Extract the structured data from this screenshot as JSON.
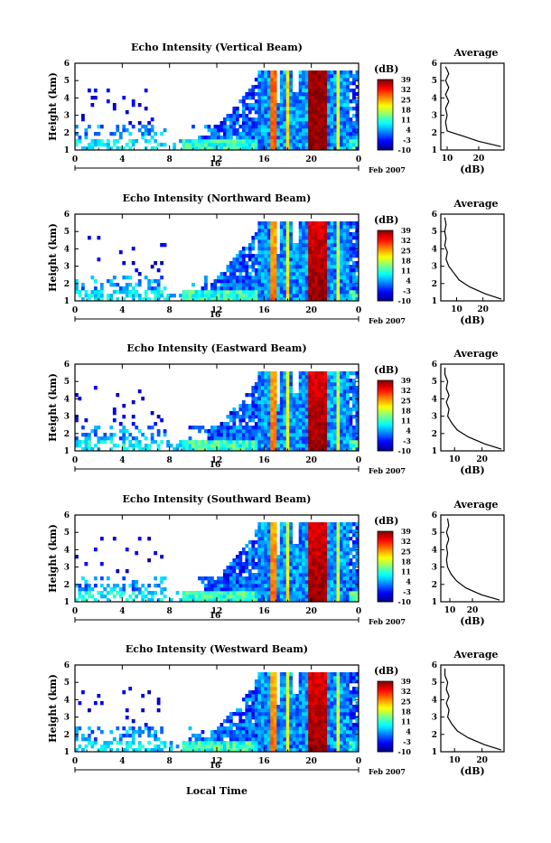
{
  "figure": {
    "xlabel": "Local Time",
    "date_label": "Feb 2007",
    "day_label": "16",
    "colorbar_label": "(dB)",
    "colorbar_ticks": [
      "39",
      "32",
      "25",
      "18",
      "11",
      "4",
      "-3",
      "-10"
    ],
    "avg_title": "Average",
    "avg_xlabel": "(dB)"
  },
  "chart_data": [
    {
      "type": "heatmap",
      "title": "Echo Intensity (Vertical Beam)",
      "ylabel": "Height (km)",
      "x_ticks": [
        "0",
        "4",
        "8",
        "12",
        "16",
        "20",
        "0"
      ],
      "y_ticks": [
        "1",
        "2",
        "3",
        "4",
        "5",
        "6"
      ],
      "xlim": [
        0,
        24
      ],
      "ylim": [
        1,
        6
      ],
      "zlim": [
        -10,
        39
      ],
      "avg": {
        "x_ticks": [
          "10",
          "20"
        ],
        "xlim": [
          8,
          28
        ],
        "profile": [
          [
            1.2,
            27
          ],
          [
            1.5,
            20
          ],
          [
            1.8,
            15
          ],
          [
            2.1,
            10
          ],
          [
            2.6,
            9.5
          ],
          [
            3.0,
            10
          ],
          [
            3.4,
            9.5
          ],
          [
            3.8,
            10.5
          ],
          [
            4.2,
            9.5
          ],
          [
            4.6,
            10.5
          ],
          [
            5.0,
            9.5
          ],
          [
            5.4,
            10.5
          ],
          [
            5.8,
            9.5
          ]
        ]
      }
    },
    {
      "type": "heatmap",
      "title": "Echo Intensity (Northward Beam)",
      "ylabel": "Height (km)",
      "x_ticks": [
        "0",
        "4",
        "8",
        "12",
        "16",
        "20",
        "0"
      ],
      "y_ticks": [
        "1",
        "2",
        "3",
        "4",
        "5",
        "6"
      ],
      "xlim": [
        0,
        24
      ],
      "ylim": [
        1,
        6
      ],
      "zlim": [
        -10,
        39
      ],
      "avg": {
        "x_ticks": [
          "10",
          "20"
        ],
        "xlim": [
          4,
          28
        ],
        "profile": [
          [
            1.1,
            27
          ],
          [
            1.4,
            21
          ],
          [
            1.8,
            15
          ],
          [
            2.2,
            11
          ],
          [
            2.6,
            9
          ],
          [
            3.0,
            7
          ],
          [
            3.4,
            6
          ],
          [
            3.8,
            6.5
          ],
          [
            4.2,
            5.5
          ],
          [
            4.6,
            6
          ],
          [
            5.0,
            5.5
          ],
          [
            5.4,
            6
          ],
          [
            5.8,
            5.5
          ]
        ]
      }
    },
    {
      "type": "heatmap",
      "title": "Echo Intensity (Eastward Beam)",
      "ylabel": "Height (km)",
      "x_ticks": [
        "0",
        "4",
        "8",
        "12",
        "16",
        "20",
        "0"
      ],
      "y_ticks": [
        "1",
        "2",
        "3",
        "4",
        "5",
        "6"
      ],
      "xlim": [
        0,
        24
      ],
      "ylim": [
        1,
        6
      ],
      "zlim": [
        -10,
        39
      ],
      "avg": {
        "x_ticks": [
          "10",
          "20"
        ],
        "xlim": [
          5,
          28
        ],
        "profile": [
          [
            1.1,
            27
          ],
          [
            1.4,
            21
          ],
          [
            1.8,
            15
          ],
          [
            2.2,
            11
          ],
          [
            2.6,
            9
          ],
          [
            3.0,
            7.5
          ],
          [
            3.4,
            8
          ],
          [
            3.8,
            7
          ],
          [
            4.2,
            8
          ],
          [
            4.6,
            7
          ],
          [
            5.0,
            7.5
          ],
          [
            5.4,
            6.5
          ],
          [
            5.8,
            6.5
          ]
        ]
      }
    },
    {
      "type": "heatmap",
      "title": "Echo Intensity (Southward Beam)",
      "ylabel": "Height (km)",
      "x_ticks": [
        "0",
        "4",
        "8",
        "12",
        "16",
        "20",
        "0"
      ],
      "y_ticks": [
        "1",
        "2",
        "3",
        "4",
        "5",
        "6"
      ],
      "xlim": [
        0,
        24
      ],
      "ylim": [
        1,
        6
      ],
      "zlim": [
        -10,
        39
      ],
      "avg": {
        "x_ticks": [
          "10",
          "20"
        ],
        "xlim": [
          6,
          34
        ],
        "profile": [
          [
            1.1,
            32
          ],
          [
            1.4,
            24
          ],
          [
            1.8,
            17
          ],
          [
            2.2,
            13
          ],
          [
            2.6,
            10.5
          ],
          [
            3.0,
            9
          ],
          [
            3.4,
            8.5
          ],
          [
            3.8,
            9
          ],
          [
            4.2,
            8.5
          ],
          [
            4.6,
            9.5
          ],
          [
            5.0,
            8.5
          ],
          [
            5.4,
            9.5
          ],
          [
            5.8,
            9
          ]
        ]
      }
    },
    {
      "type": "heatmap",
      "title": "Echo Intensity (Westward Beam)",
      "ylabel": "Height (km)",
      "x_ticks": [
        "0",
        "4",
        "8",
        "12",
        "16",
        "20",
        "0"
      ],
      "y_ticks": [
        "1",
        "2",
        "3",
        "4",
        "5",
        "6"
      ],
      "xlim": [
        0,
        24
      ],
      "ylim": [
        1,
        6
      ],
      "zlim": [
        -10,
        39
      ],
      "avg": {
        "x_ticks": [
          "10",
          "20"
        ],
        "xlim": [
          5,
          28
        ],
        "profile": [
          [
            1.1,
            27
          ],
          [
            1.4,
            21
          ],
          [
            1.8,
            15
          ],
          [
            2.2,
            11
          ],
          [
            2.6,
            9
          ],
          [
            3.0,
            7.5
          ],
          [
            3.4,
            8
          ],
          [
            3.8,
            7
          ],
          [
            4.2,
            8
          ],
          [
            4.6,
            7
          ],
          [
            5.0,
            7.5
          ],
          [
            5.4,
            6.5
          ],
          [
            5.8,
            6.5
          ]
        ]
      }
    }
  ]
}
